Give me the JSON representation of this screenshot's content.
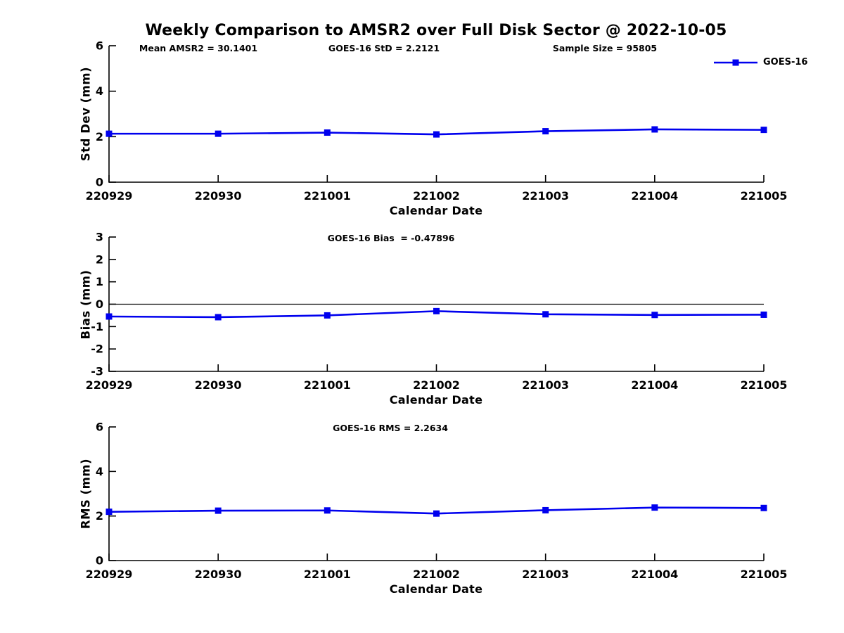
{
  "figure": {
    "title": "Weekly Comparison to AMSR2 over Full Disk Sector @ 2022-10-05"
  },
  "legend": {
    "label": "GOES-16",
    "position": "top-right",
    "marker": "square",
    "color": "#0000ee"
  },
  "colors": {
    "series_line": "#0000ee",
    "axis": "#000000",
    "background": "#ffffff"
  },
  "chart_data": [
    {
      "type": "line",
      "series": [
        {
          "name": "GOES-16",
          "values": [
            2.13,
            2.13,
            2.18,
            2.1,
            2.24,
            2.32,
            2.3
          ]
        }
      ],
      "categories": [
        "220929",
        "220930",
        "221001",
        "221002",
        "221003",
        "221004",
        "221005"
      ],
      "title": "",
      "xlabel": "Calendar Date",
      "ylabel": "Std Dev (mm)",
      "ylim": [
        0,
        6
      ],
      "yticks": [
        0,
        2,
        4,
        6
      ],
      "grid": false,
      "zero_line": false,
      "marker": "square",
      "annotations": [
        "Mean AMSR2 = 30.1401",
        "GOES-16 StD = 2.2121",
        "Sample Size = 95805"
      ]
    },
    {
      "type": "line",
      "series": [
        {
          "name": "GOES-16",
          "values": [
            -0.55,
            -0.58,
            -0.5,
            -0.31,
            -0.45,
            -0.48,
            -0.47
          ]
        }
      ],
      "categories": [
        "220929",
        "220930",
        "221001",
        "221002",
        "221003",
        "221004",
        "221005"
      ],
      "title": "",
      "xlabel": "Calendar Date",
      "ylabel": "Bias (mm)",
      "ylim": [
        -3,
        3
      ],
      "yticks": [
        3,
        2,
        1,
        0,
        -1,
        -2,
        -3
      ],
      "grid": false,
      "zero_line": true,
      "marker": "square",
      "annotations": [
        "GOES-16 Bias  = -0.47896"
      ]
    },
    {
      "type": "line",
      "series": [
        {
          "name": "GOES-16",
          "values": [
            2.19,
            2.24,
            2.25,
            2.11,
            2.26,
            2.38,
            2.36
          ]
        }
      ],
      "categories": [
        "220929",
        "220930",
        "221001",
        "221002",
        "221003",
        "221004",
        "221005"
      ],
      "title": "",
      "xlabel": "Calendar Date",
      "ylabel": "RMS (mm)",
      "ylim": [
        0,
        6
      ],
      "yticks": [
        0,
        2,
        4,
        6
      ],
      "grid": false,
      "zero_line": false,
      "marker": "square",
      "annotations": [
        "GOES-16 RMS = 2.2634"
      ]
    }
  ]
}
